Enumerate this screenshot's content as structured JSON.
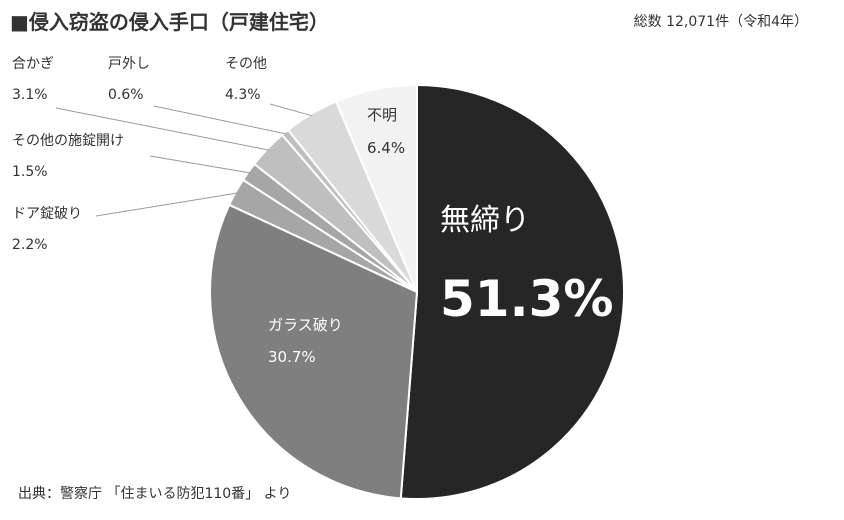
{
  "title": "■侵入窃盗の侵入手口（戸建住宅）",
  "total_note": "総数 12,071件（令和4年）",
  "source": "出典：警察庁 「住まいる防犯110番」 より",
  "chart_data": {
    "type": "pie",
    "title": "■侵入窃盗の侵入手口（戸建住宅）",
    "unit": "%",
    "slices": [
      {
        "name": "無締り",
        "value": 51.3,
        "label": "51.3%",
        "color": "#262626"
      },
      {
        "name": "ガラス破り",
        "value": 30.7,
        "label": "30.7%",
        "color": "#7f7f7f"
      },
      {
        "name": "ドア錠破り",
        "value": 2.2,
        "label": "2.2%",
        "color": "#a6a6a6"
      },
      {
        "name": "その他の施錠開け",
        "value": 1.5,
        "label": "1.5%",
        "color": "#a6a6a6"
      },
      {
        "name": "合かぎ",
        "value": 3.1,
        "label": "3.1%",
        "color": "#bfbfbf"
      },
      {
        "name": "戸外し",
        "value": 0.6,
        "label": "0.6%",
        "color": "#bfbfbf"
      },
      {
        "name": "その他",
        "value": 4.3,
        "label": "4.3%",
        "color": "#d9d9d9"
      },
      {
        "name": "不明",
        "value": 6.4,
        "label": "6.4%",
        "color": "#f2f2f2"
      }
    ]
  }
}
